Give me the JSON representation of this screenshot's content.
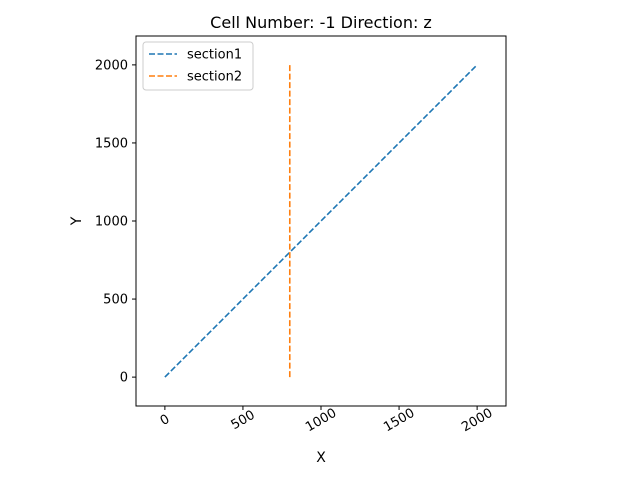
{
  "chart_data": {
    "type": "line",
    "title": "Cell Number: -1 Direction: z",
    "xlabel": "X",
    "ylabel": "Y",
    "xlim": [
      -185,
      2185
    ],
    "ylim": [
      -185,
      2185
    ],
    "x_ticks": [
      0,
      500,
      1000,
      1500,
      2000
    ],
    "y_ticks": [
      0,
      500,
      1000,
      1500,
      2000
    ],
    "x_tick_rotation_deg": 30,
    "grid": false,
    "legend_position": "top-left",
    "series": [
      {
        "name": "section1",
        "color": "#1f77b4",
        "style": "dashed",
        "x": [
          0,
          2000
        ],
        "y": [
          0,
          2000
        ]
      },
      {
        "name": "section2",
        "color": "#ff7f0e",
        "style": "dashed",
        "x": [
          800,
          800
        ],
        "y": [
          0,
          2000
        ]
      }
    ]
  }
}
